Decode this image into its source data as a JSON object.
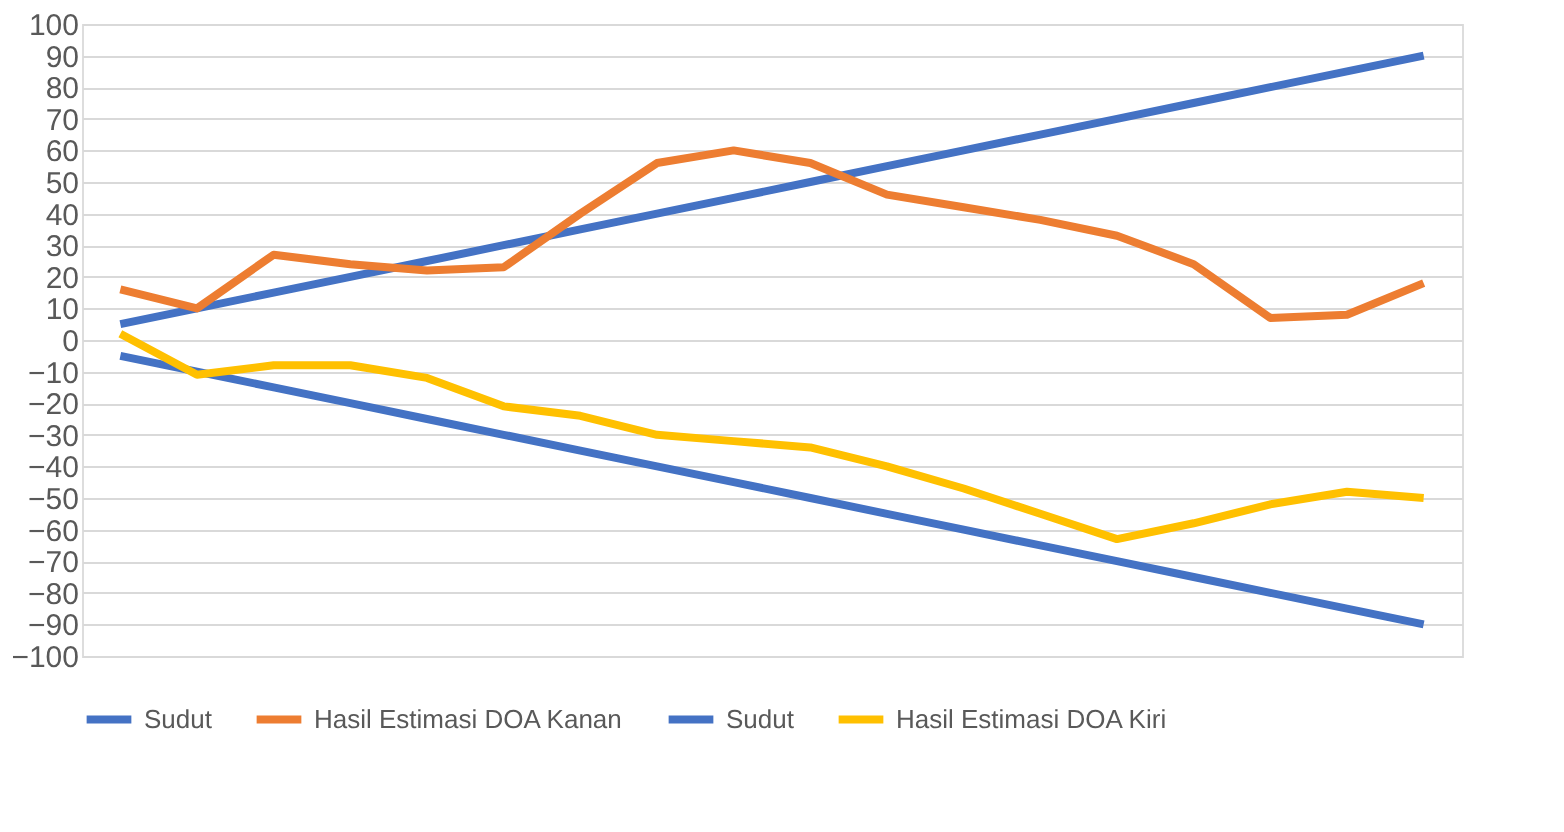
{
  "chart_data": {
    "type": "line",
    "categories": [
      null,
      null,
      null,
      null,
      null,
      null,
      null,
      null,
      null,
      null,
      null,
      null,
      null,
      null,
      null,
      null,
      null,
      null
    ],
    "series": [
      {
        "name": "Sudut",
        "color": "#4472c4",
        "values": [
          5,
          10,
          15,
          20,
          25,
          30,
          35,
          40,
          45,
          50,
          55,
          60,
          65,
          70,
          75,
          80,
          85,
          90
        ]
      },
      {
        "name": "Hasil Estimasi DOA Kanan",
        "color": "#ed7d31",
        "values": [
          16,
          10,
          27,
          24,
          22,
          23,
          40,
          56,
          60,
          56,
          46,
          42,
          38,
          33,
          24,
          7,
          8,
          18
        ]
      },
      {
        "name": "Sudut",
        "color": "#4472c4",
        "values": [
          -5,
          -10,
          -15,
          -20,
          -25,
          -30,
          -35,
          -40,
          -45,
          -50,
          -55,
          -60,
          -65,
          -70,
          -75,
          -80,
          -85,
          -90
        ]
      },
      {
        "name": "Hasil Estimasi DOA Kiri",
        "color": "#ffc000",
        "values": [
          2,
          -11,
          -8,
          -8,
          -12,
          -21,
          -24,
          -30,
          -32,
          -34,
          -40,
          -47,
          -55,
          -63,
          -58,
          -52,
          -48,
          -50
        ]
      }
    ],
    "ylim": [
      -100,
      100
    ],
    "yticks": [
      -100,
      -90,
      -80,
      -70,
      -60,
      -50,
      -40,
      -30,
      -20,
      -10,
      0,
      10,
      20,
      30,
      40,
      50,
      60,
      70,
      80,
      90,
      100
    ],
    "grid": "y",
    "legend": "bottom",
    "tick_labels": "y",
    "marker": "none",
    "line_style": "solid"
  }
}
